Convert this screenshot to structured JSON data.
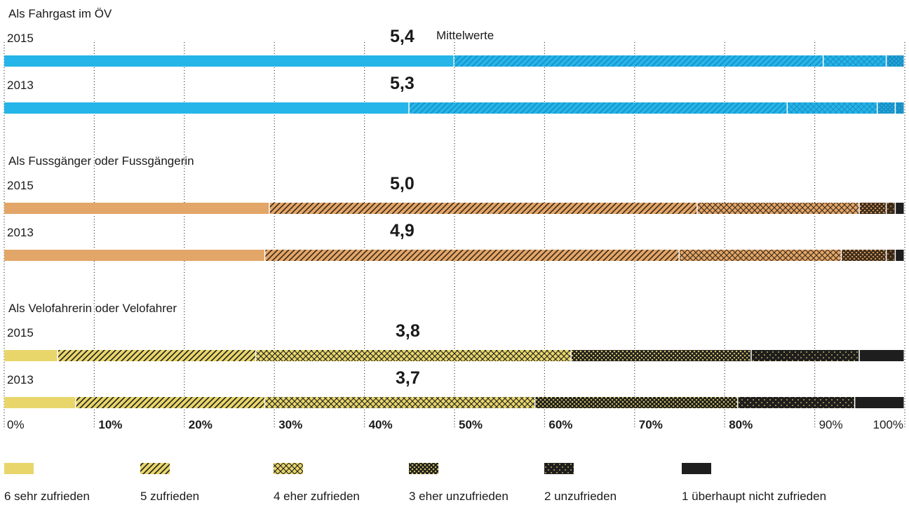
{
  "chart_data": {
    "type": "bar",
    "stacked": true,
    "orientation": "horizontal",
    "xlim": [
      0,
      100
    ],
    "x_unit": "%",
    "grid": true,
    "legend_placement": "bottom",
    "mean_note": "Mittelwerte",
    "levels": [
      {
        "label": "6 sehr zufrieden",
        "pattern": "solid"
      },
      {
        "label": "5 zufrieden",
        "pattern": "diagonal"
      },
      {
        "label": "4 eher zufrieden",
        "pattern": "crosshatch"
      },
      {
        "label": "3 eher unzufrieden",
        "pattern": "dense-crosshatch"
      },
      {
        "label": "2 unzufrieden",
        "pattern": "dotted"
      },
      {
        "label": "1 überhaupt nicht zufrieden",
        "pattern": "solid-black"
      }
    ],
    "legend_colors": {
      "light": "#e8d66b",
      "dark": "#1e1e1e"
    },
    "ticks": [
      "0%",
      "10%",
      "20%",
      "30%",
      "40%",
      "50%",
      "60%",
      "70%",
      "80%",
      "90%",
      "100%"
    ],
    "groups": [
      {
        "title": "Als Fahrgast im ÖV",
        "color": "#25b5e9",
        "dark": "#1a8fc4",
        "rows": [
          {
            "year": "2015",
            "mean": "5,4",
            "values": [
              50,
              41,
              7,
              2,
              0,
              0
            ]
          },
          {
            "year": "2013",
            "mean": "5,3",
            "values": [
              45,
              42,
              10,
              2,
              1,
              0
            ]
          }
        ]
      },
      {
        "title": "Als Fussgänger oder Fussgängerin",
        "color": "#e3a669",
        "dark": "#3a2a18",
        "rows": [
          {
            "year": "2015",
            "mean": "5,0",
            "values": [
              29.5,
              47.5,
              18,
              3,
              1,
              1
            ]
          },
          {
            "year": "2013",
            "mean": "4,9",
            "values": [
              29,
              46,
              18,
              5,
              1,
              1
            ]
          }
        ]
      },
      {
        "title": "Als Velofahrerin oder Velofahrer",
        "color": "#e8d66b",
        "dark": "#1e1e1e",
        "rows": [
          {
            "year": "2015",
            "mean": "3,8",
            "values": [
              6,
              22,
              35,
              20,
              12,
              5
            ]
          },
          {
            "year": "2013",
            "mean": "3,7",
            "values": [
              8,
              21,
              30,
              22.5,
              13,
              5.5
            ]
          }
        ]
      }
    ]
  }
}
